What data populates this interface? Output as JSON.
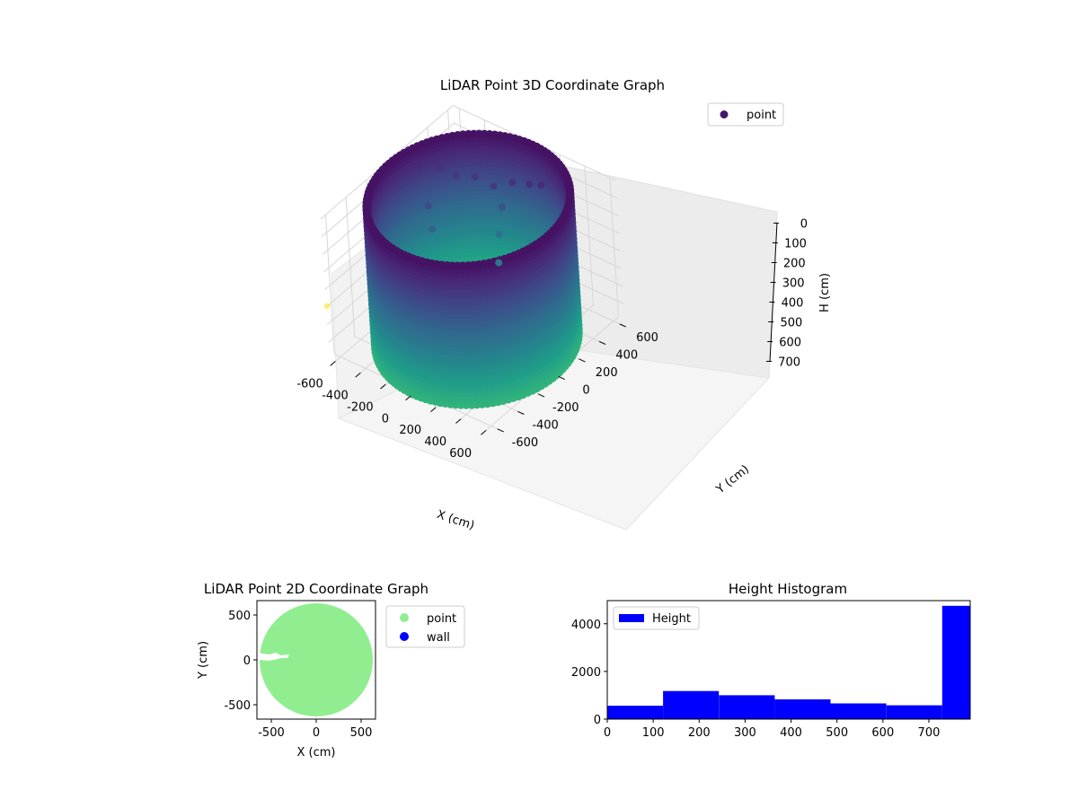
{
  "chart_data": [
    {
      "type": "scatter3d",
      "title": "LiDAR Point 3D Coordinate Graph",
      "xlabel": "X (cm)",
      "ylabel": "Y (cm)",
      "zlabel": "H (cm)",
      "legend": {
        "placement": "top-right",
        "entries": [
          {
            "label": "point",
            "color": "#46166b"
          }
        ]
      },
      "x_ticks": [
        "-600",
        "-400",
        "-200",
        "0",
        "200",
        "400",
        "600"
      ],
      "y_ticks": [
        "-600",
        "-400",
        "-200",
        "0",
        "200",
        "400",
        "600"
      ],
      "z_ticks": [
        "0",
        "100",
        "200",
        "300",
        "400",
        "500",
        "600",
        "700"
      ],
      "xlim": [
        -650,
        650
      ],
      "ylim": [
        -650,
        650
      ],
      "zlim": [
        0,
        790
      ],
      "z_inverted": true,
      "grid": true,
      "colormap": "viridis",
      "cylinder": {
        "radius": 630,
        "z_min": 0,
        "z_max": 790
      },
      "interior_outlier_trace": [
        {
          "x": -560,
          "y": 200,
          "z": 90
        },
        {
          "x": -480,
          "y": 300,
          "z": 120
        },
        {
          "x": -380,
          "y": 330,
          "z": 150
        },
        {
          "x": -250,
          "y": 360,
          "z": 130
        },
        {
          "x": -120,
          "y": 380,
          "z": 150
        },
        {
          "x": 0,
          "y": 420,
          "z": 110
        },
        {
          "x": 120,
          "y": 440,
          "z": 90
        },
        {
          "x": 200,
          "y": 460,
          "z": 80
        },
        {
          "x": -60,
          "y": 380,
          "z": 250
        },
        {
          "x": -80,
          "y": 360,
          "z": 400
        },
        {
          "x": -90,
          "y": 350,
          "z": 560
        },
        {
          "x": -420,
          "y": 100,
          "z": 220
        },
        {
          "x": -380,
          "y": 80,
          "z": 330
        }
      ],
      "stray_point": {
        "x": -950,
        "y": 0,
        "z": 400,
        "color": "#fde725"
      }
    },
    {
      "type": "scatter",
      "title": "LiDAR Point 2D Coordinate Graph",
      "xlabel": "X (cm)",
      "ylabel": "Y (cm)",
      "x_ticks": [
        "-500",
        "0",
        "500"
      ],
      "y_ticks": [
        "-500",
        "0",
        "500"
      ],
      "xlim": [
        -660,
        660
      ],
      "ylim": [
        -660,
        660
      ],
      "legend": {
        "placement": "outside-right",
        "entries": [
          {
            "label": "point",
            "color": "#90ee90"
          },
          {
            "label": "wall",
            "color": "#0000ff"
          }
        ]
      },
      "disc": {
        "radius": 630,
        "color": "#90ee90"
      }
    },
    {
      "type": "histogram",
      "title": "Height Histogram",
      "legend": {
        "placement": "top-left",
        "entries": [
          {
            "label": "Height",
            "color": "#0000ff"
          }
        ]
      },
      "x_ticks": [
        "0",
        "100",
        "200",
        "300",
        "400",
        "500",
        "600",
        "700"
      ],
      "y_ticks": [
        "0",
        "2000",
        "4000"
      ],
      "xlim": [
        0,
        790
      ],
      "ylim": [
        0,
        4970
      ],
      "bin_edges": [
        0,
        121.5,
        243,
        364.5,
        486,
        607.5,
        729,
        790
      ],
      "values": [
        560,
        1180,
        1000,
        830,
        660,
        580,
        4750
      ],
      "color": "#0000ff"
    }
  ]
}
